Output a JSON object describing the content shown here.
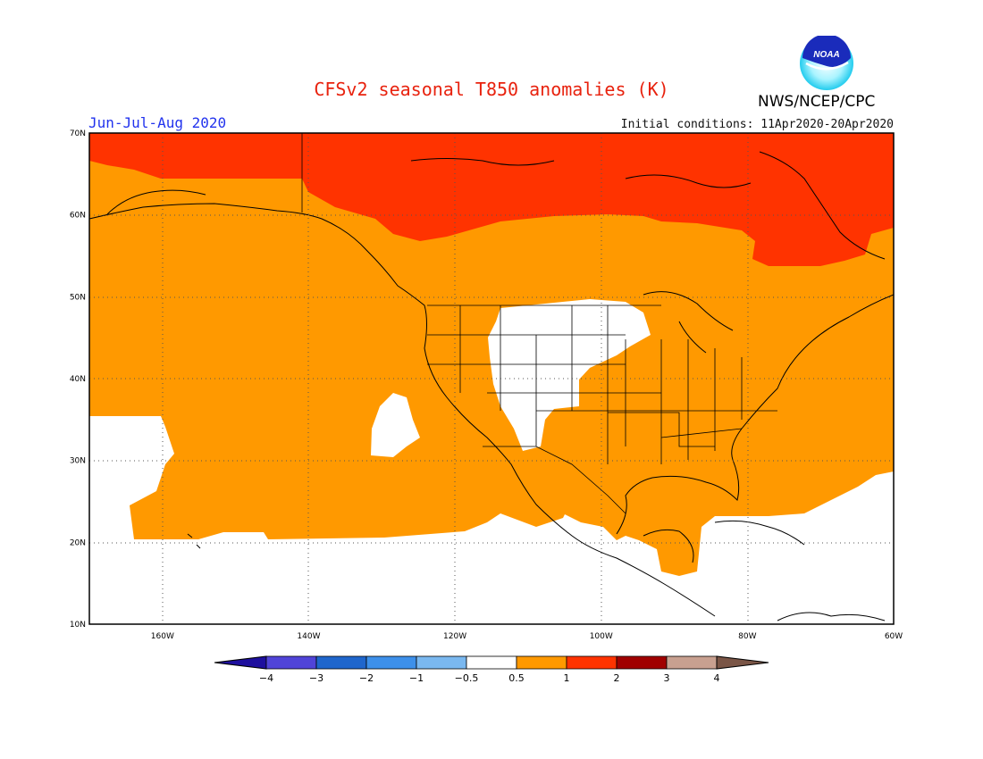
{
  "header": {
    "title": "CFSv2 seasonal T850 anomalies (K)",
    "period": "Jun-Jul-Aug 2020",
    "initial_conditions": "Initial conditions: 11Apr2020-20Apr2020",
    "agency": "NWS/NCEP/CPC",
    "logo_text": "NOAA"
  },
  "map": {
    "lat_labels": [
      "70N",
      "60N",
      "50N",
      "40N",
      "30N",
      "20N",
      "10N"
    ],
    "lon_labels": [
      "160W",
      "140W",
      "120W",
      "100W",
      "80W",
      "60W"
    ],
    "lat_range": [
      10,
      70
    ],
    "lon_range": [
      -170,
      -60
    ],
    "grid": "dotted every 10 degrees",
    "anomaly_regions": [
      {
        "class": "1 to 2",
        "color": "#ff3300",
        "description": "high latitudes (Arctic Canada, northern Alaska, Greenland edge)"
      },
      {
        "class": "0.5 to 1",
        "color": "#ff9900",
        "description": "most of North Pacific, Alaska, western/central/eastern US, Canada, Gulf of Mexico"
      },
      {
        "class": "-0.5 to 0.5",
        "color": "#ffffff",
        "description": "northern Plains, southern Rockies, subtropical Pacific, Caribbean, Central America"
      }
    ]
  },
  "colorbar": {
    "tick_labels": [
      "-4",
      "-3",
      "-2",
      "-1",
      "-0.5",
      "0.5",
      "1",
      "2",
      "3",
      "4"
    ],
    "colors": [
      "#1e0f9e",
      "#5044d8",
      "#1f66cc",
      "#3d90ea",
      "#7ab8f0",
      "#ffffff",
      "#ff9900",
      "#ff3300",
      "#a00000",
      "#c8a090",
      "#7a5546"
    ]
  }
}
